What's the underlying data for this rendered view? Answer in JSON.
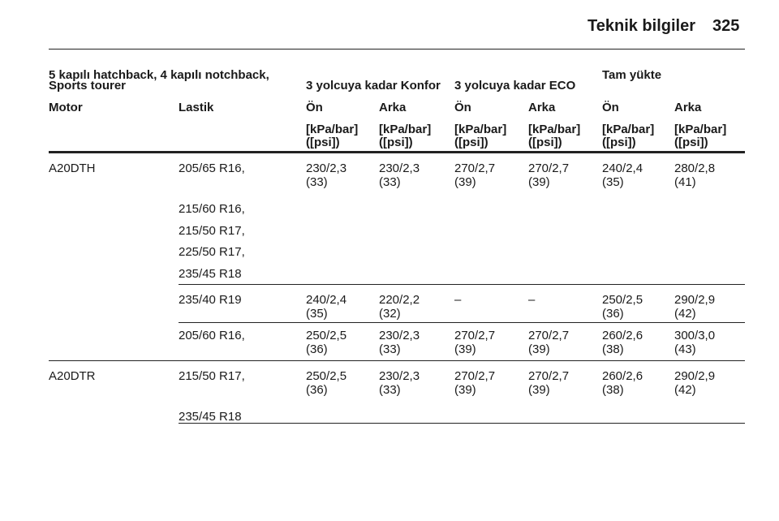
{
  "header": {
    "title": "Teknik bilgiler",
    "page": "325"
  },
  "table": {
    "heading": {
      "vehicle": [
        "5 kapılı hatchback, 4 kapılı notchback,",
        "Sports tourer"
      ],
      "groups": [
        "3 yolcuya kadar Konfor",
        "3 yolcuya kadar ECO",
        "Tam yükte"
      ]
    },
    "columns": [
      "Motor",
      "Lastik",
      "Ön",
      "Arka",
      "Ön",
      "Arka",
      "Ön",
      "Arka"
    ],
    "units": [
      [
        "[kPa/bar]",
        "([psi])"
      ],
      [
        "[kPa/bar]",
        "([psi])"
      ],
      [
        "[kPa/bar]",
        "([psi])"
      ],
      [
        "[kPa/bar]",
        "([psi])"
      ],
      [
        "[kPa/bar]",
        "([psi])"
      ],
      [
        "[kPa/bar]",
        "([psi])"
      ]
    ],
    "rows": [
      {
        "motor": "A20DTH",
        "tires": [
          "205/65 R16,",
          "215/60 R16,",
          "215/50 R17,",
          "225/50 R17,",
          "235/45 R18"
        ],
        "values": [
          [
            "230/2,3",
            "(33)"
          ],
          [
            "230/2,3",
            "(33)"
          ],
          [
            "270/2,7",
            "(39)"
          ],
          [
            "270/2,7",
            "(39)"
          ],
          [
            "240/2,4",
            "(35)"
          ],
          [
            "280/2,8",
            "(41)"
          ]
        ]
      },
      {
        "tires": [
          "235/40 R19"
        ],
        "values": [
          [
            "240/2,4",
            "(35)"
          ],
          [
            "220/2,2",
            "(32)"
          ],
          [
            "–"
          ],
          [
            "–"
          ],
          [
            "250/2,5",
            "(36)"
          ],
          [
            "290/2,9",
            "(42)"
          ]
        ]
      },
      {
        "tires": [
          "205/60 R16,"
        ],
        "values": [
          [
            "250/2,5",
            "(36)"
          ],
          [
            "230/2,3",
            "(33)"
          ],
          [
            "270/2,7",
            "(39)"
          ],
          [
            "270/2,7",
            "(39)"
          ],
          [
            "260/2,6",
            "(38)"
          ],
          [
            "300/3,0",
            "(43)"
          ]
        ]
      },
      {
        "motor": "A20DTR",
        "tires": [
          "215/50 R17,",
          "235/45 R18"
        ],
        "values": [
          [
            "250/2,5",
            "(36)"
          ],
          [
            "230/2,3",
            "(33)"
          ],
          [
            "270/2,7",
            "(39)"
          ],
          [
            "270/2,7",
            "(39)"
          ],
          [
            "260/2,6",
            "(38)"
          ],
          [
            "290/2,9",
            "(42)"
          ]
        ]
      }
    ]
  }
}
